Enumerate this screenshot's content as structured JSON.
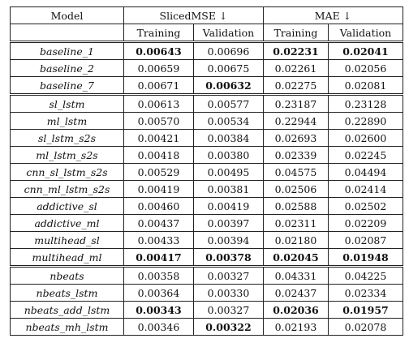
{
  "header": {
    "model": "Model",
    "group1": "SlicedMSE ↓",
    "group2": "MAE ↓",
    "sub": [
      "Training",
      "Validation",
      "Training",
      "Validation"
    ]
  },
  "rows": [
    {
      "model": "baseline_1",
      "v": [
        "0.00643",
        "0.00696",
        "0.02231",
        "0.02041"
      ],
      "bold": [
        true,
        false,
        true,
        true
      ]
    },
    {
      "model": "baseline_2",
      "v": [
        "0.00659",
        "0.00675",
        "0.02261",
        "0.02056"
      ],
      "bold": [
        false,
        false,
        false,
        false
      ]
    },
    {
      "model": "baseline_7",
      "v": [
        "0.00671",
        "0.00632",
        "0.02275",
        "0.02081"
      ],
      "bold": [
        false,
        true,
        false,
        false
      ]
    },
    {
      "model": "sl_lstm",
      "v": [
        "0.00613",
        "0.00577",
        "0.23187",
        "0.23128"
      ],
      "bold": [
        false,
        false,
        false,
        false
      ]
    },
    {
      "model": "ml_lstm",
      "v": [
        "0.00570",
        "0.00534",
        "0.22944",
        "0.22890"
      ],
      "bold": [
        false,
        false,
        false,
        false
      ]
    },
    {
      "model": "sl_lstm_s2s",
      "v": [
        "0.00421",
        "0.00384",
        "0.02693",
        "0.02600"
      ],
      "bold": [
        false,
        false,
        false,
        false
      ]
    },
    {
      "model": "ml_lstm_s2s",
      "v": [
        "0.00418",
        "0.00380",
        "0.02339",
        "0.02245"
      ],
      "bold": [
        false,
        false,
        false,
        false
      ]
    },
    {
      "model": "cnn_sl_lstm_s2s",
      "v": [
        "0.00529",
        "0.00495",
        "0.04575",
        "0.04494"
      ],
      "bold": [
        false,
        false,
        false,
        false
      ]
    },
    {
      "model": "cnn_ml_lstm_s2s",
      "v": [
        "0.00419",
        "0.00381",
        "0.02506",
        "0.02414"
      ],
      "bold": [
        false,
        false,
        false,
        false
      ]
    },
    {
      "model": "addictive_sl",
      "v": [
        "0.00460",
        "0.00419",
        "0.02588",
        "0.02502"
      ],
      "bold": [
        false,
        false,
        false,
        false
      ]
    },
    {
      "model": "addictive_ml",
      "v": [
        "0.00437",
        "0.00397",
        "0.02311",
        "0.02209"
      ],
      "bold": [
        false,
        false,
        false,
        false
      ]
    },
    {
      "model": "multihead_sl",
      "v": [
        "0.00433",
        "0.00394",
        "0.02180",
        "0.02087"
      ],
      "bold": [
        false,
        false,
        false,
        false
      ]
    },
    {
      "model": "multihead_ml",
      "v": [
        "0.00417",
        "0.00378",
        "0.02045",
        "0.01948"
      ],
      "bold": [
        true,
        true,
        true,
        true
      ]
    },
    {
      "model": "nbeats",
      "v": [
        "0.00358",
        "0.00327",
        "0.04331",
        "0.04225"
      ],
      "bold": [
        false,
        false,
        false,
        false
      ]
    },
    {
      "model": "nbeats_lstm",
      "v": [
        "0.00364",
        "0.00330",
        "0.02437",
        "0.02334"
      ],
      "bold": [
        false,
        false,
        false,
        false
      ]
    },
    {
      "model": "nbeats_add_lstm",
      "v": [
        "0.00343",
        "0.00327",
        "0.02036",
        "0.01957"
      ],
      "bold": [
        true,
        false,
        true,
        true
      ]
    },
    {
      "model": "nbeats_mh_lstm",
      "v": [
        "0.00346",
        "0.00322",
        "0.02193",
        "0.02078"
      ],
      "bold": [
        false,
        true,
        false,
        false
      ]
    }
  ]
}
